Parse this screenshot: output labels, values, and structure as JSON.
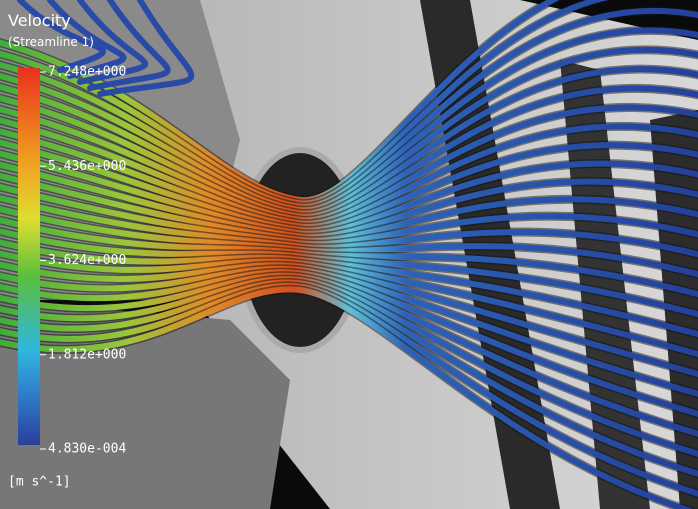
{
  "legend": {
    "title": "Velocity",
    "subtitle": "(Streamline  1)",
    "ticks": [
      "7.248e+000",
      "5.436e+000",
      "3.624e+000",
      "1.812e+000",
      "4.830e-004"
    ],
    "unit": "[m  s^-1]"
  }
}
